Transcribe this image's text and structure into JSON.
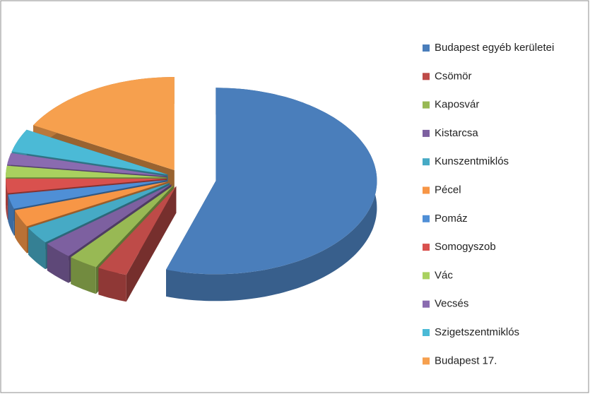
{
  "chart_data": {
    "type": "pie3d",
    "categories": [
      "Budapest egyéb kerületei",
      "Csömör",
      "Kaposvár",
      "Kistarcsa",
      "Kunszentmiklós",
      "Pécel",
      "Pomáz",
      "Somogyszob",
      "Vác",
      "Vecsés",
      "Szigetszentmiklós",
      "Budapest 17."
    ],
    "values": [
      55,
      3,
      3,
      3,
      3,
      3,
      2.5,
      2.5,
      2,
      2,
      4,
      17
    ],
    "colors": [
      "#4a7ebb",
      "#be4b48",
      "#98b954",
      "#7d60a0",
      "#46aac5",
      "#f79646",
      "#4f8fd6",
      "#d9514e",
      "#a9d15f",
      "#8a6bb0",
      "#4bbad6",
      "#f6a04e"
    ],
    "legend": "right"
  }
}
